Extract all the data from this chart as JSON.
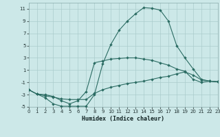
{
  "xlabel": "Humidex (Indice chaleur)",
  "bg_color": "#cce8e8",
  "grid_color": "#aacccc",
  "line_color": "#2a6b62",
  "xlim": [
    0,
    23
  ],
  "ylim": [
    -5,
    12
  ],
  "xticks": [
    0,
    1,
    2,
    3,
    4,
    5,
    6,
    7,
    8,
    9,
    10,
    11,
    12,
    13,
    14,
    15,
    16,
    17,
    18,
    19,
    20,
    21,
    22,
    23
  ],
  "yticks": [
    -5,
    -3,
    -1,
    1,
    3,
    5,
    7,
    9,
    11
  ],
  "s1_x": [
    0,
    1,
    2,
    3,
    4,
    5,
    6,
    7,
    8,
    9,
    10,
    11,
    12,
    13,
    14,
    15,
    16,
    17,
    18,
    19,
    20,
    21,
    22,
    23
  ],
  "s1_y": [
    -2.2,
    -2.9,
    -3.5,
    -4.5,
    -4.9,
    -4.9,
    -4.9,
    -4.9,
    -3.0,
    2.0,
    5.2,
    7.5,
    9.0,
    10.2,
    11.2,
    11.1,
    10.8,
    9.0,
    5.0,
    3.0,
    1.2,
    -0.5,
    -0.8,
    -0.9
  ],
  "s2_x": [
    0,
    1,
    2,
    3,
    4,
    5,
    6,
    7,
    8,
    9,
    10,
    11,
    12,
    13,
    14,
    15,
    16,
    17,
    18,
    19,
    20,
    21,
    22,
    23
  ],
  "s2_y": [
    -2.2,
    -2.9,
    -3.0,
    -3.3,
    -4.0,
    -4.5,
    -4.0,
    -2.5,
    2.2,
    2.5,
    2.8,
    2.9,
    3.0,
    3.0,
    2.8,
    2.6,
    2.2,
    1.8,
    1.2,
    0.8,
    -0.5,
    -1.0,
    -0.8,
    -0.9
  ],
  "s3_x": [
    0,
    1,
    2,
    3,
    4,
    5,
    6,
    7,
    8,
    9,
    10,
    11,
    12,
    13,
    14,
    15,
    16,
    17,
    18,
    19,
    20,
    21,
    22,
    23
  ],
  "s3_y": [
    -2.2,
    -2.9,
    -3.2,
    -3.4,
    -3.7,
    -3.8,
    -3.8,
    -3.8,
    -2.8,
    -2.2,
    -1.8,
    -1.5,
    -1.2,
    -1.0,
    -0.8,
    -0.5,
    -0.2,
    0.0,
    0.4,
    0.7,
    0.2,
    -0.6,
    -0.8,
    -0.9
  ]
}
